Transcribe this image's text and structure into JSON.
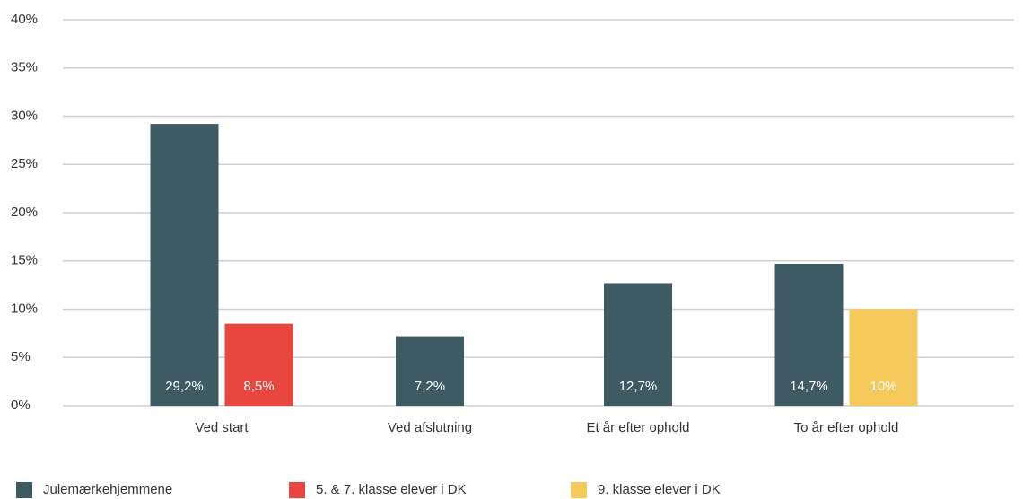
{
  "chart_data": {
    "type": "bar",
    "categories": [
      "Ved start",
      "Ved afslutning",
      "Et år efter ophold",
      "To år efter ophold"
    ],
    "series": [
      {
        "name": "Julemærkehjemmene",
        "color": "#3e5b63",
        "values": [
          29.2,
          7.2,
          12.7,
          14.7
        ],
        "value_labels": [
          "29,2%",
          "7,2%",
          "12,7%",
          "14,7%"
        ]
      },
      {
        "name": "5. & 7. klasse elever i DK",
        "color": "#e8463e",
        "values": [
          8.5,
          null,
          null,
          null
        ],
        "value_labels": [
          "8,5%",
          null,
          null,
          null
        ]
      },
      {
        "name": "9. klasse elever i DK",
        "color": "#f6c95b",
        "values": [
          null,
          null,
          null,
          10
        ],
        "value_labels": [
          null,
          null,
          null,
          "10%"
        ]
      }
    ],
    "ylim": [
      0,
      40
    ],
    "yticks": [
      {
        "value": 0,
        "label": "0%"
      },
      {
        "value": 5,
        "label": "5%"
      },
      {
        "value": 10,
        "label": "10%"
      },
      {
        "value": 15,
        "label": "15%"
      },
      {
        "value": 20,
        "label": "20%"
      },
      {
        "value": 25,
        "label": "25%"
      },
      {
        "value": 30,
        "label": "30%"
      },
      {
        "value": 35,
        "label": "35%"
      },
      {
        "value": 40,
        "label": "40%"
      }
    ],
    "grid": true,
    "legend": "bottom"
  }
}
